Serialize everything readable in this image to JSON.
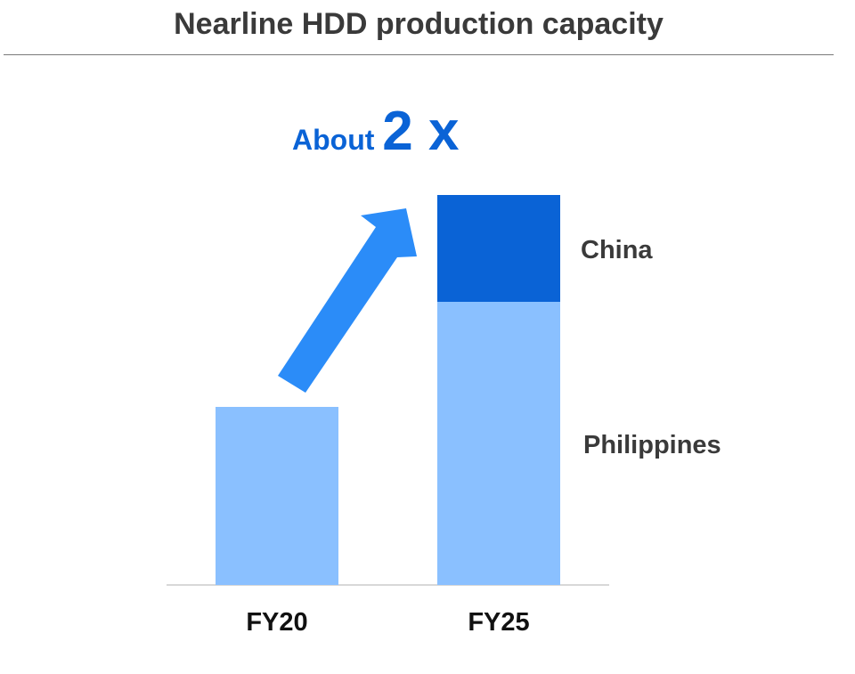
{
  "header": {
    "title": "Nearline HDD production capacity"
  },
  "chart_data": {
    "type": "bar",
    "stacked": true,
    "title": "Nearline HDD production capacity",
    "categories": [
      "FY20",
      "FY25"
    ],
    "series": [
      {
        "name": "Philippines",
        "values": [
          1.0,
          1.59
        ]
      },
      {
        "name": "China",
        "values": [
          0,
          0.6
        ]
      }
    ],
    "colors": {
      "Philippines": "#8ac0ff",
      "China": "#0a63d6",
      "arrow": "#2b8cf8",
      "axis": "#cccccc"
    },
    "ylim": [
      0,
      2.2
    ],
    "grid": false,
    "legend": "right-of-bars",
    "annotation": {
      "prefix": "About ",
      "value": "2 x"
    }
  }
}
